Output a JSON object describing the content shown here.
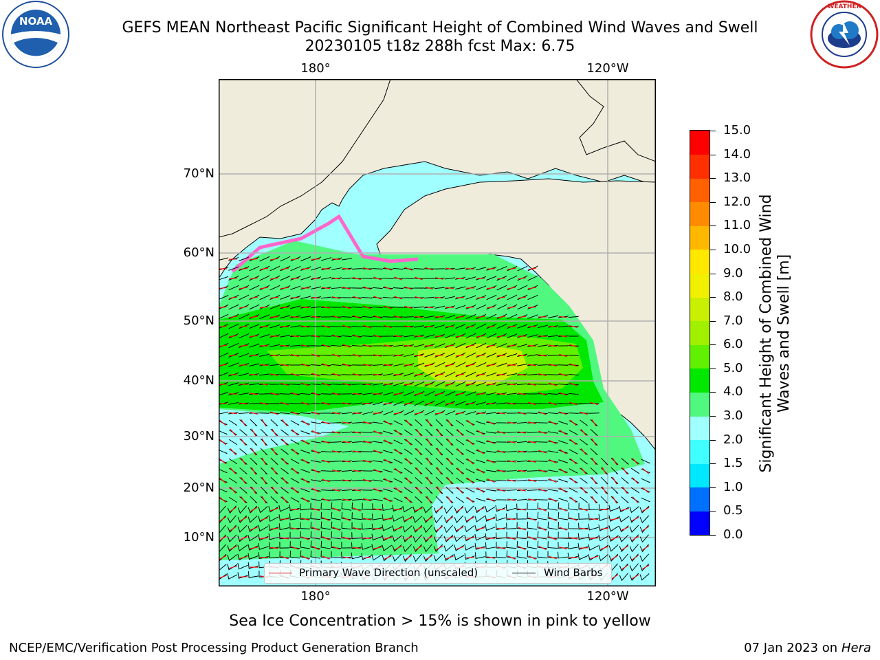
{
  "title_line1": "GEFS MEAN Northeast Pacific Significant Height of Combined Wind Waves and Swell",
  "title_line2": "20230105 t18z 288h fcst   Max: 6.75",
  "logos": {
    "left": "NOAA",
    "right": "NATIONAL WEATHER SERVICE"
  },
  "map": {
    "lon_labels": [
      "180°",
      "120°W"
    ],
    "lat_labels": [
      "70°N",
      "60°N",
      "50°N",
      "40°N",
      "30°N",
      "20°N",
      "10°N"
    ],
    "colors": {
      "land": "#efecdc",
      "grid": "#b0b0b0",
      "wave_arrow": "#ff0000",
      "wind_barb": "#000000"
    }
  },
  "legend": {
    "wave_label": "Primary Wave Direction (unscaled)",
    "barb_label": "Wind Barbs"
  },
  "colorbar": {
    "title": "Significant Height of Combined Wind Waves and Swell [m]",
    "tick_labels": [
      "15.0",
      "14.0",
      "13.0",
      "12.0",
      "11.0",
      "10.0",
      "9.0",
      "8.0",
      "7.0",
      "6.0",
      "5.0",
      "4.0",
      "3.0",
      "2.0",
      "1.5",
      "1.0",
      "0.5",
      "0.0"
    ],
    "colors": [
      "#0000ff",
      "#0070ff",
      "#00e8ff",
      "#40ffff",
      "#a0ffff",
      "#50f880",
      "#00e800",
      "#60f000",
      "#a0f000",
      "#c8f000",
      "#f0f000",
      "#ffe800",
      "#ffb800",
      "#ff8c00",
      "#ff6000",
      "#ff3000",
      "#ff0000"
    ]
  },
  "subnote": "Sea Ice Concentration > 15% is shown in pink to yellow",
  "footer": {
    "left": "NCEP/EMC/Verification Post Processing Product Generation Branch",
    "date": "07 Jan 2023 on",
    "machine": "Hera"
  }
}
